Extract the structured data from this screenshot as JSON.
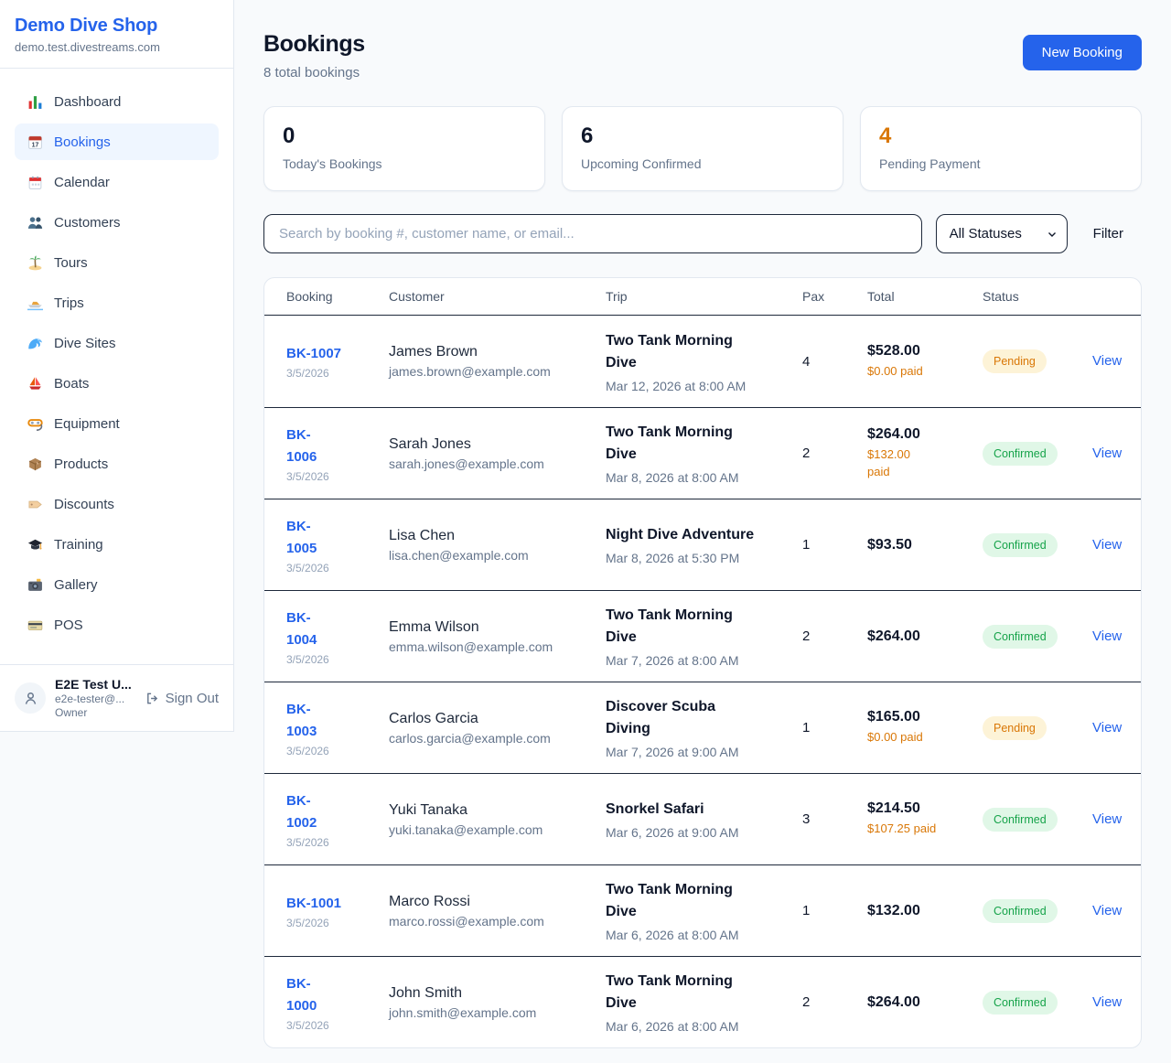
{
  "brand": {
    "name": "Demo Dive Shop",
    "domain": "demo.test.divestreams.com"
  },
  "sidebar": {
    "items": [
      {
        "icon": "bar-chart-icon",
        "label": "Dashboard",
        "active": false
      },
      {
        "icon": "tearoff-calendar-icon",
        "label": "Bookings",
        "active": true
      },
      {
        "icon": "spiral-calendar-icon",
        "label": "Calendar",
        "active": false
      },
      {
        "icon": "people-icon",
        "label": "Customers",
        "active": false
      },
      {
        "icon": "island-icon",
        "label": "Tours",
        "active": false
      },
      {
        "icon": "speedboat-icon",
        "label": "Trips",
        "active": false
      },
      {
        "icon": "wave-icon",
        "label": "Dive Sites",
        "active": false
      },
      {
        "icon": "sailboat-icon",
        "label": "Boats",
        "active": false
      },
      {
        "icon": "dive-mask-icon",
        "label": "Equipment",
        "active": false
      },
      {
        "icon": "package-icon",
        "label": "Products",
        "active": false
      },
      {
        "icon": "tag-icon",
        "label": "Discounts",
        "active": false
      },
      {
        "icon": "graduation-cap-icon",
        "label": "Training",
        "active": false
      },
      {
        "icon": "camera-icon",
        "label": "Gallery",
        "active": false
      },
      {
        "icon": "credit-card-icon",
        "label": "POS",
        "active": false
      }
    ]
  },
  "user": {
    "name": "E2E Test U...",
    "email": "e2e-tester@...",
    "role": "Owner",
    "sign_out_label": "Sign Out"
  },
  "header": {
    "title": "Bookings",
    "subtitle": "8 total bookings",
    "new_booking_label": "New Booking"
  },
  "stats": [
    {
      "value": "0",
      "label": "Today's Bookings",
      "accent": false
    },
    {
      "value": "6",
      "label": "Upcoming Confirmed",
      "accent": false
    },
    {
      "value": "4",
      "label": "Pending Payment",
      "accent": true
    }
  ],
  "filters": {
    "search_placeholder": "Search by booking #, customer name, or email...",
    "status_selected": "All Statuses",
    "filter_label": "Filter"
  },
  "table": {
    "columns": [
      "Booking",
      "Customer",
      "Trip",
      "Pax",
      "Total",
      "Status"
    ],
    "view_label": "View",
    "rows": [
      {
        "code": "BK-1007",
        "date": "3/5/2026",
        "customer": "James Brown",
        "email": "james.brown@example.com",
        "trip": "Two Tank Morning\nDive",
        "trip_datetime": "Mar 12, 2026 at 8:00 AM",
        "pax": "4",
        "total": "$528.00",
        "paid": "$0.00 paid",
        "status": "Pending"
      },
      {
        "code": "BK-\n1006",
        "date": "3/5/2026",
        "customer": "Sarah Jones",
        "email": "sarah.jones@example.com",
        "trip": "Two Tank Morning\nDive",
        "trip_datetime": "Mar 8, 2026 at 8:00 AM",
        "pax": "2",
        "total": "$264.00",
        "paid": "$132.00\npaid",
        "status": "Confirmed"
      },
      {
        "code": "BK-\n1005",
        "date": "3/5/2026",
        "customer": "Lisa Chen",
        "email": "lisa.chen@example.com",
        "trip": "Night Dive Adventure",
        "trip_datetime": "Mar 8, 2026 at 5:30 PM",
        "pax": "1",
        "total": "$93.50",
        "paid": "",
        "status": "Confirmed"
      },
      {
        "code": "BK-\n1004",
        "date": "3/5/2026",
        "customer": "Emma Wilson",
        "email": "emma.wilson@example.com",
        "trip": "Two Tank Morning\nDive",
        "trip_datetime": "Mar 7, 2026 at 8:00 AM",
        "pax": "2",
        "total": "$264.00",
        "paid": "",
        "status": "Confirmed"
      },
      {
        "code": "BK-\n1003",
        "date": "3/5/2026",
        "customer": "Carlos Garcia",
        "email": "carlos.garcia@example.com",
        "trip": "Discover Scuba\nDiving",
        "trip_datetime": "Mar 7, 2026 at 9:00 AM",
        "pax": "1",
        "total": "$165.00",
        "paid": "$0.00 paid",
        "status": "Pending"
      },
      {
        "code": "BK-\n1002",
        "date": "3/5/2026",
        "customer": "Yuki Tanaka",
        "email": "yuki.tanaka@example.com",
        "trip": "Snorkel Safari",
        "trip_datetime": "Mar 6, 2026 at 9:00 AM",
        "pax": "3",
        "total": "$214.50",
        "paid": "$107.25 paid",
        "status": "Confirmed"
      },
      {
        "code": "BK-1001",
        "date": "3/5/2026",
        "customer": "Marco Rossi",
        "email": "marco.rossi@example.com",
        "trip": "Two Tank Morning\nDive",
        "trip_datetime": "Mar 6, 2026 at 8:00 AM",
        "pax": "1",
        "total": "$132.00",
        "paid": "",
        "status": "Confirmed"
      },
      {
        "code": "BK-\n1000",
        "date": "3/5/2026",
        "customer": "John Smith",
        "email": "john.smith@example.com",
        "trip": "Two Tank Morning\nDive",
        "trip_datetime": "Mar 6, 2026 at 8:00 AM",
        "pax": "2",
        "total": "$264.00",
        "paid": "",
        "status": "Confirmed"
      }
    ]
  },
  "colors": {
    "accent_blue": "#2563eb",
    "accent_orange": "#d97706",
    "pending_bg": "#fdf3d7",
    "pending_text": "#d97706",
    "confirmed_bg": "#e0f7e7",
    "confirmed_text": "#16a34a"
  }
}
